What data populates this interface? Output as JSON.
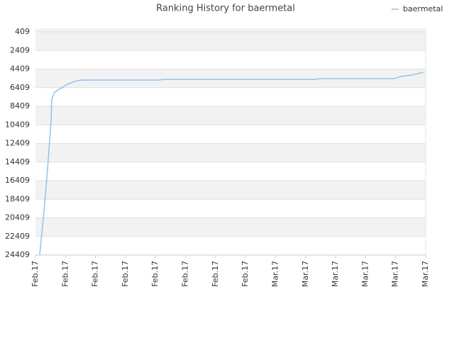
{
  "chart_data": {
    "type": "line",
    "title": "Ranking History for baermetal",
    "x": [
      0.14,
      0.28,
      0.4,
      0.52,
      0.54,
      0.64,
      0.83,
      1.06,
      1.3,
      1.54,
      4.14,
      4.26,
      9.34,
      9.46,
      11.94,
      12.17,
      12.53,
      12.93
    ],
    "series": [
      {
        "name": "baermetal",
        "color": "#8ec3ef",
        "values": [
          24409,
          19840,
          15270,
          9930,
          7650,
          6890,
          6500,
          6050,
          5740,
          5590,
          5590,
          5510,
          5510,
          5440,
          5440,
          5210,
          5060,
          4750
        ]
      }
    ],
    "xlim": [
      0,
      13
    ],
    "xticks": [
      {
        "value": 0,
        "label": "Feb.17"
      },
      {
        "value": 1,
        "label": "Feb.17"
      },
      {
        "value": 2,
        "label": "Feb.17"
      },
      {
        "value": 3,
        "label": "Feb.17"
      },
      {
        "value": 4,
        "label": "Feb.17"
      },
      {
        "value": 5,
        "label": "Feb.17"
      },
      {
        "value": 6,
        "label": "Feb.17"
      },
      {
        "value": 7,
        "label": "Feb.17"
      },
      {
        "value": 8,
        "label": "Mar.17"
      },
      {
        "value": 9,
        "label": "Mar.17"
      },
      {
        "value": 10,
        "label": "Mar.17"
      },
      {
        "value": 11,
        "label": "Mar.17"
      },
      {
        "value": 12,
        "label": "Mar.17"
      },
      {
        "value": 13,
        "label": "Mar.17"
      }
    ],
    "ylim": [
      24409,
      28
    ],
    "yticks": [
      409,
      2409,
      4409,
      6409,
      8409,
      10409,
      12409,
      14409,
      16409,
      18409,
      20409,
      22409,
      24409
    ],
    "grid": true,
    "legend": "top-right"
  }
}
